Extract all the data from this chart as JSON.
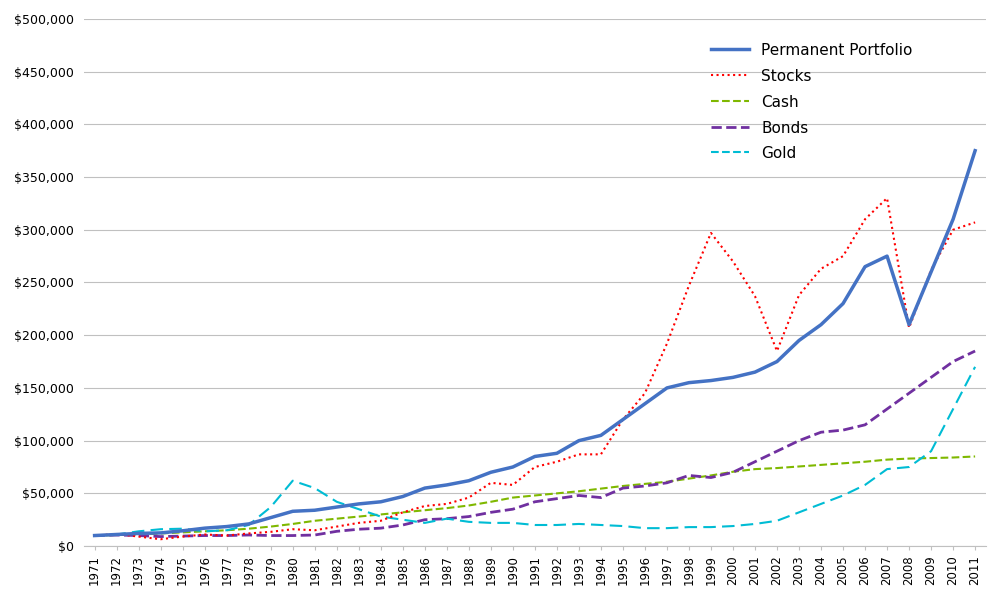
{
  "years": [
    1971,
    1972,
    1973,
    1974,
    1975,
    1976,
    1977,
    1978,
    1979,
    1980,
    1981,
    1982,
    1983,
    1984,
    1985,
    1986,
    1987,
    1988,
    1989,
    1990,
    1991,
    1992,
    1993,
    1994,
    1995,
    1996,
    1997,
    1998,
    1999,
    2000,
    2001,
    2002,
    2003,
    2004,
    2005,
    2006,
    2007,
    2008,
    2009,
    2010,
    2011
  ],
  "permanent_portfolio": [
    10000,
    11000,
    12000,
    12500,
    14500,
    17000,
    18500,
    21000,
    27000,
    33000,
    34000,
    37000,
    40000,
    42000,
    47000,
    55000,
    58000,
    62000,
    70000,
    75000,
    85000,
    88000,
    100000,
    105000,
    120000,
    135000,
    150000,
    155000,
    157000,
    160000,
    165000,
    175000,
    195000,
    210000,
    230000,
    265000,
    275000,
    210000,
    260000,
    310000,
    375000
  ],
  "stocks": [
    10000,
    11500,
    9000,
    6500,
    9000,
    11000,
    10000,
    12000,
    13500,
    16000,
    15000,
    18500,
    22000,
    24000,
    32000,
    38000,
    40000,
    46000,
    60000,
    58000,
    75000,
    80000,
    87000,
    87000,
    120000,
    145000,
    192000,
    247000,
    297000,
    270000,
    237000,
    185000,
    238000,
    263000,
    275000,
    310000,
    330000,
    207000,
    262000,
    300000,
    307000
  ],
  "cash": [
    10000,
    10500,
    11000,
    12000,
    13000,
    14000,
    15000,
    16500,
    18500,
    21000,
    24000,
    26000,
    28000,
    30000,
    32000,
    34000,
    36000,
    38500,
    42000,
    46000,
    48000,
    50000,
    52000,
    54500,
    57000,
    59000,
    61000,
    64000,
    67000,
    70500,
    73000,
    74000,
    75500,
    77000,
    78500,
    80000,
    82000,
    83000,
    83500,
    84000,
    85000
  ],
  "bonds": [
    10000,
    10500,
    10000,
    9000,
    9500,
    10000,
    10000,
    10500,
    10000,
    10000,
    10500,
    14000,
    16000,
    17000,
    20000,
    25000,
    26000,
    28000,
    32000,
    35000,
    42000,
    45000,
    48000,
    46000,
    55000,
    57000,
    60000,
    67000,
    65000,
    70000,
    80000,
    90000,
    100000,
    108000,
    110000,
    115000,
    130000,
    145000,
    160000,
    175000,
    185000
  ],
  "gold": [
    10000,
    11000,
    14000,
    16000,
    16500,
    14000,
    15000,
    20000,
    37000,
    62000,
    55000,
    42000,
    35000,
    28000,
    25000,
    22000,
    26000,
    23000,
    22000,
    22000,
    20000,
    20000,
    21000,
    20000,
    19000,
    17000,
    17000,
    18000,
    18000,
    19000,
    21000,
    24000,
    32000,
    40000,
    48000,
    58000,
    73000,
    75000,
    90000,
    130000,
    170000
  ],
  "permanent_portfolio_color": "#4472C4",
  "stocks_color": "#FF0000",
  "cash_color": "#7FB800",
  "bonds_color": "#7030A0",
  "gold_color": "#00BCD4",
  "background_color": "#FFFFFF",
  "grid_color": "#C0C0C0",
  "title": "",
  "ylim": [
    0,
    500000
  ],
  "yticks": [
    0,
    50000,
    100000,
    150000,
    200000,
    250000,
    300000,
    350000,
    400000,
    450000,
    500000
  ]
}
